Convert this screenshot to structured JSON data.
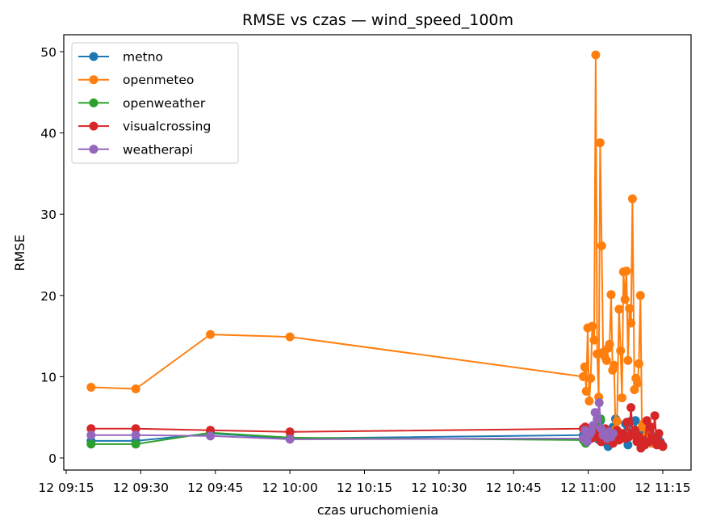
{
  "chart_data": {
    "type": "line",
    "title": "RMSE vs czas — wind_speed_100m",
    "xlabel": "czas uruchomienia",
    "ylabel": "RMSE",
    "x_unit": "minutes (time of day 12 09:15 … 12 11:15)",
    "xlim": [
      570,
      697
    ],
    "ylim": [
      -1.5,
      52
    ],
    "x_ticks": [
      {
        "v": 555,
        "label": "12 09:15"
      },
      {
        "v": 570,
        "label": "12 09:30"
      },
      {
        "v": 585,
        "label": "12 09:45"
      },
      {
        "v": 600,
        "label": "12 10:00"
      },
      {
        "v": 615,
        "label": "12 10:15"
      },
      {
        "v": 630,
        "label": "12 10:30"
      },
      {
        "v": 645,
        "label": "12 10:45"
      },
      {
        "v": 660,
        "label": "12 11:00"
      },
      {
        "v": 675,
        "label": "12 11:15"
      }
    ],
    "y_ticks": [
      0,
      10,
      20,
      30,
      40,
      50
    ],
    "legend_position": "upper-left",
    "series": [
      {
        "name": "metno",
        "color": "#1f77b4",
        "x": [
          560,
          569,
          584,
          600,
          659,
          659.5,
          660,
          660.5,
          661,
          661.5,
          662,
          662.5,
          663,
          663.5,
          664,
          664.5,
          665,
          665.5,
          666,
          666.5,
          667,
          667.5,
          668,
          668.5,
          669,
          669.5,
          670,
          670.5,
          671,
          671.5,
          672,
          672.5,
          673,
          673.5,
          674,
          674.5,
          675
        ],
        "y": [
          2.1,
          2.1,
          3.0,
          2.4,
          2.8,
          3.2,
          2.4,
          3.6,
          2.6,
          3.0,
          2.3,
          4.6,
          2.0,
          2.8,
          1.4,
          2.6,
          3.8,
          4.8,
          2.5,
          3.0,
          2.6,
          4.2,
          1.6,
          4.5,
          3.0,
          4.6,
          2.0,
          3.2,
          2.6,
          3.2,
          2.0,
          2.8,
          2.4,
          2.2,
          2.6,
          2.0,
          1.5
        ]
      },
      {
        "name": "openmeteo",
        "color": "#ff7f0e",
        "x": [
          560,
          569,
          584,
          600,
          659,
          659.3,
          659.6,
          659.9,
          660.2,
          660.5,
          660.8,
          661.2,
          661.5,
          661.8,
          662.1,
          662.4,
          662.7,
          663.0,
          663.3,
          663.7,
          664.0,
          664.3,
          664.6,
          664.9,
          665.2,
          665.5,
          665.8,
          666.2,
          666.5,
          666.8,
          667.1,
          667.4,
          667.7,
          668.0,
          668.3,
          668.6,
          668.9,
          669.3,
          669.6,
          669.9,
          670.2,
          670.5,
          670.8,
          671.1,
          671.4,
          671.8,
          672.1,
          672.4,
          672.7,
          673.0
        ],
        "y": [
          8.7,
          8.5,
          15.2,
          14.9,
          10.0,
          11.2,
          8.2,
          16.0,
          7.0,
          9.8,
          16.2,
          14.5,
          49.6,
          12.8,
          7.5,
          38.8,
          26.1,
          13.0,
          12.5,
          12.0,
          13.5,
          14.0,
          20.1,
          10.8,
          11.4,
          3.5,
          4.5,
          18.3,
          13.2,
          7.4,
          22.9,
          19.5,
          23.0,
          12.0,
          18.4,
          16.6,
          31.9,
          8.4,
          9.8,
          9.2,
          11.6,
          20.0,
          3.8,
          4.2,
          2.0,
          2.8,
          3.4,
          2.4,
          1.8,
          2.2
        ]
      },
      {
        "name": "openweather",
        "color": "#2ca02c",
        "x": [
          560,
          569,
          584,
          600,
          659,
          659.5,
          660,
          660.5,
          661,
          661.5,
          662,
          662.5,
          663,
          663.5,
          664
        ],
        "y": [
          1.7,
          1.7,
          3.1,
          2.5,
          2.2,
          1.8,
          2.6,
          3.0,
          3.4,
          3.8,
          4.4,
          4.8,
          3.0,
          2.6,
          2.9
        ]
      },
      {
        "name": "visualcrossing",
        "color": "#d62728",
        "x": [
          560,
          569,
          584,
          600,
          659,
          659.4,
          659.8,
          660.2,
          660.6,
          661.0,
          661.4,
          661.8,
          662.2,
          662.6,
          663.0,
          663.4,
          663.8,
          664.2,
          664.6,
          665.0,
          665.4,
          665.8,
          666.2,
          666.6,
          667.0,
          667.4,
          667.8,
          668.2,
          668.6,
          669.0,
          669.4,
          669.8,
          670.2,
          670.6,
          671.0,
          671.4,
          671.8,
          672.2,
          672.6,
          673.0,
          673.4,
          673.8,
          674.2,
          674.6,
          675.0
        ],
        "y": [
          3.6,
          3.6,
          3.4,
          3.2,
          3.6,
          3.8,
          2.8,
          3.2,
          2.4,
          3.0,
          3.6,
          2.6,
          3.2,
          2.0,
          2.8,
          3.6,
          2.2,
          3.0,
          2.4,
          1.8,
          2.6,
          3.4,
          2.2,
          2.8,
          3.0,
          2.4,
          4.4,
          2.6,
          6.2,
          2.8,
          3.4,
          2.0,
          2.6,
          1.2,
          2.2,
          1.6,
          4.6,
          2.0,
          3.8,
          2.4,
          5.2,
          1.6,
          3.0,
          1.8,
          1.4
        ]
      },
      {
        "name": "weatherapi",
        "color": "#9467bd",
        "x": [
          560,
          569,
          584,
          600,
          659,
          659.4,
          659.8,
          660.2,
          660.6,
          661.0,
          661.4,
          661.8,
          662.2,
          662.6,
          663.0,
          663.4,
          663.8,
          664.2,
          664.6,
          665.0
        ],
        "y": [
          2.8,
          2.8,
          2.7,
          2.3,
          2.4,
          3.4,
          2.0,
          2.8,
          3.2,
          4.0,
          5.6,
          4.8,
          6.8,
          3.6,
          2.8,
          3.0,
          2.4,
          3.2,
          2.6,
          3.0
        ]
      }
    ]
  }
}
